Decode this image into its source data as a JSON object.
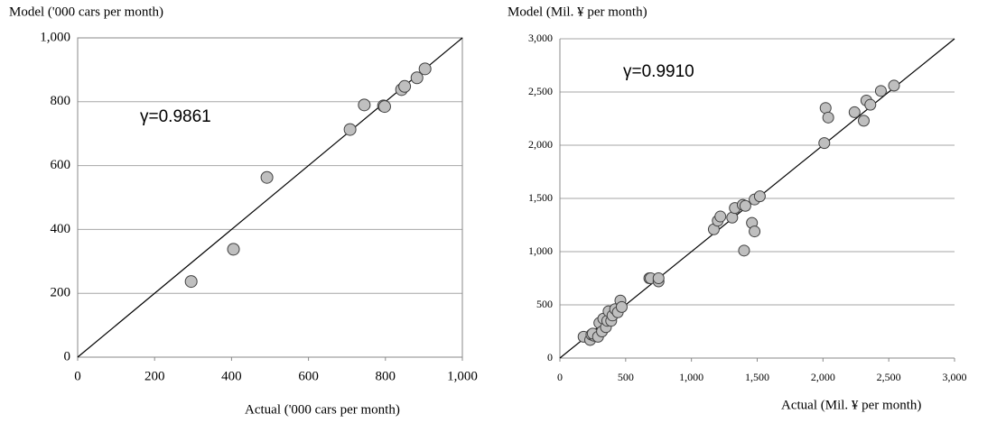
{
  "chart_data": [
    {
      "type": "scatter",
      "y_label": "Model ('000 cars per month)",
      "x_label": "Actual ('000 cars per month)",
      "annotation": "γ=0.9861",
      "x": [
        295,
        405,
        492,
        708,
        745,
        795,
        798,
        842,
        850,
        882,
        903
      ],
      "y": [
        237,
        338,
        563,
        713,
        790,
        787,
        785,
        838,
        848,
        875,
        903
      ],
      "xlim": [
        0,
        1000
      ],
      "ylim": [
        0,
        1000
      ],
      "xticks": [
        0,
        200,
        400,
        600,
        800,
        {
          "value": 1000,
          "label": "1,000"
        }
      ],
      "yticks": [
        0,
        200,
        400,
        600,
        800,
        {
          "value": 1000,
          "label": "1,000"
        }
      ],
      "grid": true,
      "color": "#bfbfbf"
    },
    {
      "type": "scatter",
      "y_label": "Model (Mil. ¥  per month)",
      "x_label": "Actual (Mil. ¥  per month)",
      "annotation": "γ=0.9910",
      "x": [
        180,
        230,
        240,
        260,
        250,
        290,
        300,
        320,
        330,
        350,
        360,
        370,
        390,
        400,
        420,
        440,
        460,
        470,
        680,
        690,
        750,
        750,
        1170,
        1200,
        1220,
        1310,
        1330,
        1390,
        1400,
        1410,
        1460,
        1480,
        1480,
        1520,
        2010,
        2020,
        2040,
        2240,
        2310,
        2330,
        2360,
        2440,
        2540
      ],
      "y": [
        200,
        170,
        220,
        210,
        230,
        200,
        330,
        250,
        370,
        290,
        350,
        440,
        350,
        400,
        460,
        430,
        540,
        480,
        750,
        750,
        720,
        750,
        1210,
        1290,
        1330,
        1320,
        1410,
        1440,
        1010,
        1430,
        1270,
        1190,
        1490,
        1520,
        2020,
        2350,
        2260,
        2310,
        2230,
        2420,
        2380,
        2510,
        2560
      ],
      "xlim": [
        0,
        3000
      ],
      "ylim": [
        0,
        3000
      ],
      "xticks": [
        0,
        500,
        {
          "value": 1000,
          "label": "1,000"
        },
        {
          "value": 1500,
          "label": "1,500"
        },
        {
          "value": 2000,
          "label": "2,000"
        },
        {
          "value": 2500,
          "label": "2,500"
        },
        {
          "value": 3000,
          "label": "3,000"
        }
      ],
      "yticks": [
        0,
        500,
        {
          "value": 1000,
          "label": "1,000"
        },
        {
          "value": 1500,
          "label": "1,500"
        },
        {
          "value": 2000,
          "label": "2,000"
        },
        {
          "value": 2500,
          "label": "2,500"
        },
        {
          "value": 3000,
          "label": "3,000"
        }
      ],
      "grid": true,
      "color": "#bfbfbf"
    }
  ]
}
